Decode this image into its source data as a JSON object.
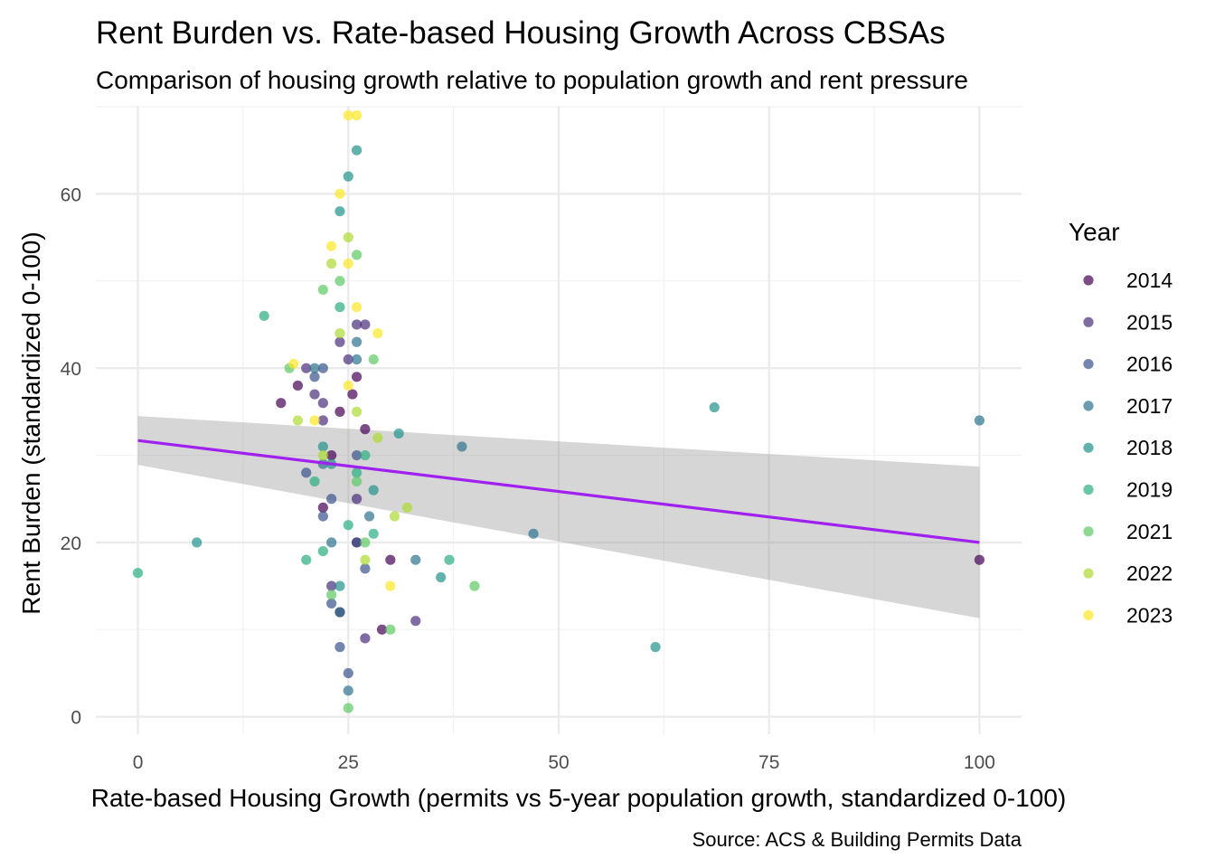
{
  "chart_data": {
    "type": "scatter",
    "title": "Rent Burden vs. Rate-based Housing Growth Across CBSAs",
    "subtitle": "Comparison of housing growth relative to population growth and rent pressure",
    "xlabel": "Rate-based Housing Growth (permits vs 5-year population growth, standardized 0-100)",
    "ylabel": "Rent Burden (standardized 0-100)",
    "caption": "Source: ACS & Building Permits Data",
    "xlim": [
      -5,
      105
    ],
    "ylim": [
      -2,
      70
    ],
    "x_ticks": [
      0,
      25,
      50,
      75,
      100
    ],
    "y_ticks": [
      0,
      20,
      40,
      60
    ],
    "grid": true,
    "legend": {
      "title": "Year",
      "position": "right"
    },
    "series": [
      {
        "name": "2014",
        "color": "#440154",
        "x": [
          17,
          19,
          26,
          27,
          24,
          25.5,
          29,
          30,
          100,
          23,
          26,
          24,
          22
        ],
        "y": [
          36,
          38,
          39,
          33,
          35,
          37,
          10,
          18,
          18,
          30,
          20,
          12,
          24
        ]
      },
      {
        "name": "2015",
        "color": "#472d7b",
        "x": [
          20,
          21,
          22,
          33,
          27,
          24,
          26,
          23,
          25,
          22,
          27,
          26
        ],
        "y": [
          40,
          37,
          36,
          11,
          45,
          43,
          45,
          15,
          41,
          34,
          9,
          25
        ]
      },
      {
        "name": "2016",
        "color": "#3b528b",
        "x": [
          22,
          23,
          20,
          21,
          26,
          27,
          24,
          25,
          22,
          26,
          23
        ],
        "y": [
          23,
          25,
          28,
          39,
          20,
          17,
          8,
          5,
          40,
          30,
          13
        ]
      },
      {
        "name": "2017",
        "color": "#2c728e",
        "x": [
          47,
          38.5,
          100,
          26,
          27.5,
          21,
          24,
          25,
          23,
          33,
          22,
          26
        ],
        "y": [
          21,
          31,
          34,
          41,
          23,
          40,
          12,
          3,
          20,
          18,
          29,
          43
        ]
      },
      {
        "name": "2018",
        "color": "#21918c",
        "x": [
          61.5,
          68.5,
          7,
          36,
          31,
          28,
          24,
          25,
          26,
          22,
          24,
          23
        ],
        "y": [
          8,
          35.5,
          20,
          16,
          32.5,
          26,
          58,
          62,
          65,
          31,
          15,
          29
        ]
      },
      {
        "name": "2019",
        "color": "#28ae80",
        "x": [
          15,
          0,
          20,
          37,
          22,
          24,
          26,
          28,
          25,
          21,
          27
        ],
        "y": [
          46,
          16.5,
          18,
          18,
          19,
          47,
          28,
          21,
          22,
          27,
          30
        ]
      },
      {
        "name": "2021",
        "color": "#5ec962",
        "x": [
          30,
          40,
          27,
          18,
          26,
          24,
          28,
          25,
          22,
          23,
          26
        ],
        "y": [
          10,
          15,
          20,
          40,
          53,
          50,
          41,
          1,
          49,
          14,
          27
        ]
      },
      {
        "name": "2022",
        "color": "#addc30",
        "x": [
          30.5,
          28.5,
          32,
          26,
          23,
          24,
          25,
          22,
          27,
          19
        ],
        "y": [
          23,
          32,
          24,
          35,
          52,
          44,
          55,
          30,
          18,
          34
        ]
      },
      {
        "name": "2023",
        "color": "#fde725",
        "x": [
          25,
          26,
          30,
          28.5,
          18.5,
          24,
          23,
          25,
          21,
          26,
          25
        ],
        "y": [
          69,
          69,
          15,
          44,
          40.5,
          60,
          54,
          52,
          34,
          47,
          38
        ]
      }
    ],
    "smooth": {
      "color": "#a020f0",
      "x": [
        0,
        100
      ],
      "y": [
        31.7,
        20.0
      ],
      "ribbon_low": [
        28.9,
        11.3
      ],
      "ribbon_high": [
        34.5,
        28.7
      ]
    }
  }
}
